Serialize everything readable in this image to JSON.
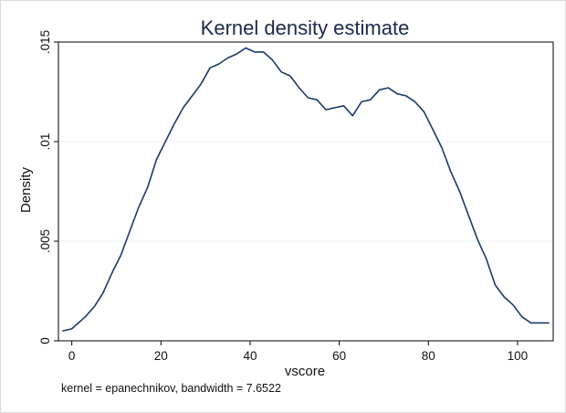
{
  "chart_data": {
    "type": "line",
    "title": "Kernel density estimate",
    "xlabel": "vscore",
    "ylabel": "Density",
    "note": "kernel = epanechnikov, bandwidth = 7.6522",
    "xlim": [
      -3,
      108
    ],
    "ylim": [
      0,
      0.015
    ],
    "x_ticks": [
      0,
      20,
      40,
      60,
      80,
      100
    ],
    "x_tick_labels": [
      "0",
      "20",
      "40",
      "60",
      "80",
      "100"
    ],
    "y_ticks": [
      0,
      0.005,
      0.01,
      0.015
    ],
    "y_tick_labels": [
      "0",
      ".005",
      ".01",
      ".015"
    ],
    "grid": "horizontal",
    "legend": "none",
    "series": [
      {
        "color": "#1a3a6b",
        "x": [
          -2,
          0,
          3,
          5,
          7,
          9,
          11,
          13,
          15,
          17,
          19,
          21,
          23,
          25,
          27,
          29,
          31,
          33,
          35,
          37,
          39,
          41,
          43,
          45,
          47,
          49,
          51,
          53,
          55,
          57,
          59,
          61,
          63,
          65,
          67,
          69,
          71,
          73,
          75,
          77,
          79,
          81,
          83,
          85,
          87,
          89,
          91,
          93,
          95,
          97,
          99,
          101,
          103,
          105,
          107
        ],
        "y": [
          0.0005,
          0.0006,
          0.0012,
          0.0017,
          0.0024,
          0.0034,
          0.0043,
          0.0055,
          0.0067,
          0.0077,
          0.0091,
          0.01,
          0.0109,
          0.0117,
          0.0123,
          0.0129,
          0.0137,
          0.0139,
          0.0142,
          0.0144,
          0.0147,
          0.0145,
          0.0145,
          0.0141,
          0.0135,
          0.0133,
          0.0127,
          0.0122,
          0.0121,
          0.0116,
          0.0117,
          0.0118,
          0.0113,
          0.012,
          0.0121,
          0.0126,
          0.0127,
          0.0124,
          0.0123,
          0.012,
          0.0115,
          0.0106,
          0.0097,
          0.0085,
          0.0075,
          0.0063,
          0.0051,
          0.0041,
          0.0028,
          0.0022,
          0.0018,
          0.0012,
          0.0009,
          0.0009,
          0.0009
        ]
      }
    ]
  }
}
